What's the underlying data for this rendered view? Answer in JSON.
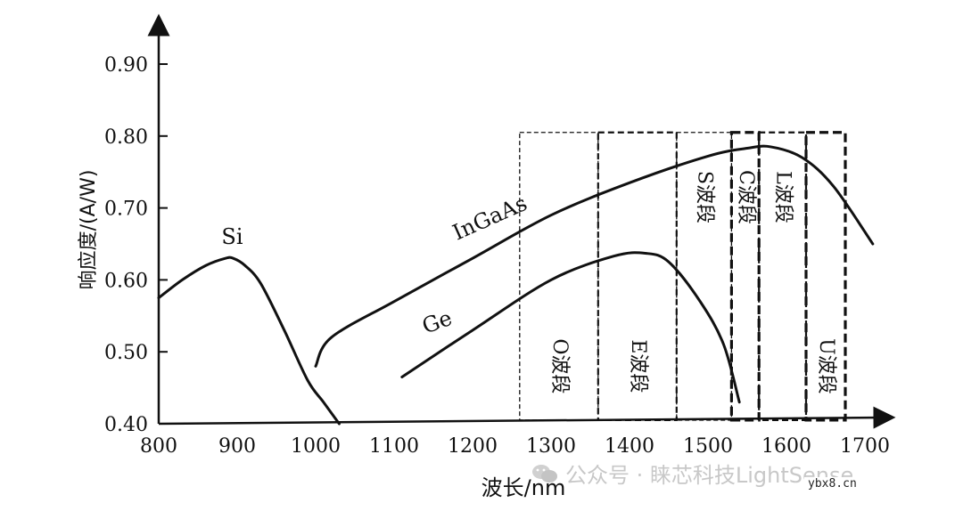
{
  "chart_data": {
    "type": "line",
    "xlabel": "波长/nm",
    "ylabel": "响应度/(A/W)",
    "xlim": [
      800,
      1700
    ],
    "ylim": [
      0.4,
      0.95
    ],
    "x_ticks": [
      "800",
      "900",
      "1000",
      "1100",
      "1200",
      "1300",
      "1400",
      "1500",
      "1600",
      "1700"
    ],
    "y_ticks": [
      "0.40",
      "0.50",
      "0.60",
      "0.70",
      "0.80",
      "0.90"
    ],
    "series": [
      {
        "name": "Si",
        "x": [
          800,
          830,
          860,
          885,
          895,
          910,
          930,
          960,
          990,
          1010,
          1030
        ],
        "y": [
          0.575,
          0.6,
          0.62,
          0.63,
          0.63,
          0.62,
          0.595,
          0.53,
          0.46,
          0.43,
          0.4
        ]
      },
      {
        "name": "InGaAs",
        "x": [
          1000,
          1020,
          1100,
          1200,
          1300,
          1400,
          1500,
          1550,
          1580,
          1620,
          1660,
          1710
        ],
        "y": [
          0.48,
          0.52,
          0.57,
          0.63,
          0.69,
          0.735,
          0.772,
          0.783,
          0.785,
          0.77,
          0.73,
          0.65
        ]
      },
      {
        "name": "Ge",
        "x": [
          1110,
          1200,
          1300,
          1380,
          1420,
          1450,
          1490,
          1520,
          1540
        ],
        "y": [
          0.465,
          0.53,
          0.6,
          0.633,
          0.637,
          0.625,
          0.57,
          0.51,
          0.43
        ]
      }
    ],
    "bands": [
      {
        "label": "O波段",
        "start": 1260,
        "end": 1360,
        "style": "thin"
      },
      {
        "label": "E波段",
        "start": 1360,
        "end": 1460,
        "style": "medium"
      },
      {
        "label": "S波段",
        "start": 1460,
        "end": 1530,
        "style": "thin"
      },
      {
        "label": "C波段",
        "start": 1530,
        "end": 1565,
        "style": "thick"
      },
      {
        "label": "L波段",
        "start": 1565,
        "end": 1625,
        "style": "medium"
      },
      {
        "label": "U波段",
        "start": 1625,
        "end": 1675,
        "style": "thick"
      }
    ]
  },
  "watermark": "公众号 · 睐芯科技LightSense",
  "site": "ybx8.cn"
}
